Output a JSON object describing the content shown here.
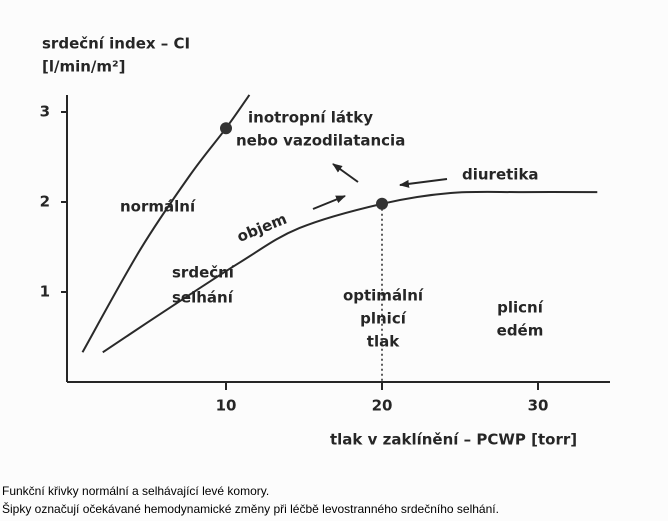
{
  "chart_data": {
    "type": "line",
    "y_label": [
      "srdeční index – CI",
      "[l/min/m²]"
    ],
    "x_label": "tlak v zaklínění – PCWP [torr]",
    "xlim": [
      0,
      35
    ],
    "ylim": [
      0,
      3.2
    ],
    "xticks": [
      10,
      20,
      30
    ],
    "yticks": [
      1,
      2,
      3
    ],
    "series": [
      {
        "color": "#2a2a2a",
        "x": [
          0.8,
          4.5,
          7.7,
          10,
          11.5
        ],
        "values": [
          0.33,
          1.47,
          2.3,
          2.82,
          3.19
        ]
      },
      {
        "color": "#2a2a2a",
        "x": [
          2.1,
          6,
          10.9,
          14.7,
          20,
          24.4,
          29,
          33.8
        ],
        "values": [
          0.33,
          0.78,
          1.33,
          1.71,
          1.98,
          2.1,
          2.11,
          2.11
        ]
      }
    ],
    "markers": [
      {
        "x": 10,
        "y": 2.82
      },
      {
        "x": 20,
        "y": 1.98
      }
    ],
    "annotations": [
      "normální",
      "inotropní látky",
      "nebo vazodilatancia",
      "diuretika",
      "objem",
      "srdeční",
      "selhání",
      "optimální",
      "plnicí",
      "tlak",
      "plicní",
      "edém"
    ]
  },
  "caption": [
    "Funkční křivky normální a selhávající levé komory.",
    "Šipky označují očekávané hemodynamické změny při léčbě levostranného srdečního selhání."
  ]
}
